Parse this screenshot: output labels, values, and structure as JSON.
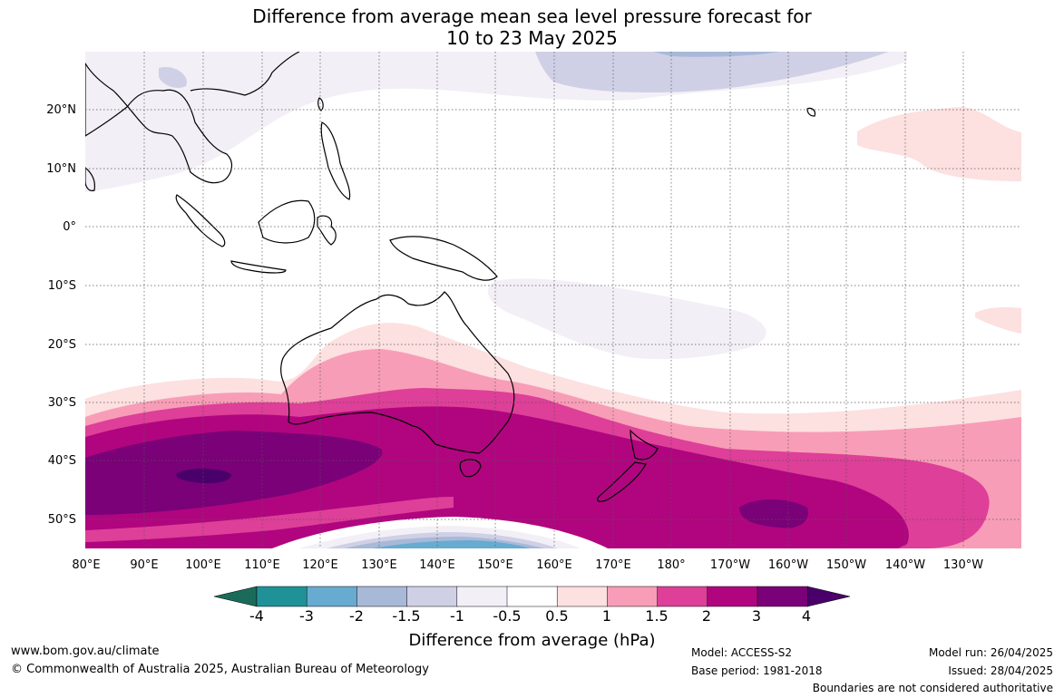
{
  "title": {
    "line1": "Difference from average mean sea level pressure forecast for",
    "line2": "10 to 23 May 2025"
  },
  "map": {
    "lat_labels": [
      "20°N",
      "10°N",
      "0°",
      "10°S",
      "20°S",
      "30°S",
      "40°S",
      "50°S"
    ],
    "lon_labels": [
      "80°E",
      "90°E",
      "100°E",
      "110°E",
      "120°E",
      "130°E",
      "140°E",
      "150°E",
      "160°E",
      "170°E",
      "180°",
      "170°W",
      "160°W",
      "150°W",
      "140°W",
      "130°W"
    ]
  },
  "colorbar": {
    "labels": [
      "-4",
      "-3",
      "-2",
      "-1.5",
      "-1",
      "-0.5",
      "0.5",
      "1",
      "1.5",
      "2",
      "3",
      "4"
    ],
    "colors": [
      "#1a6b5a",
      "#1f9297",
      "#67abd1",
      "#a8b9d8",
      "#cfd0e6",
      "#f3eff6",
      "#ffffff",
      "#fde0e0",
      "#f89db7",
      "#de3f98",
      "#b0057f",
      "#7a0177",
      "#49006a"
    ],
    "title": "Difference from average (hPa)"
  },
  "footer": {
    "website": "www.bom.gov.au/climate",
    "copyright": "© Commonwealth of Australia 2025, Australian Bureau of Meteorology",
    "model": "Model: ACCESS-S2",
    "base_period": "Base period: 1981-2018",
    "model_run": "Model run: 26/04/2025",
    "issued": "Issued: 28/04/2025",
    "disclaimer": "Boundaries are not considered authoritative"
  }
}
